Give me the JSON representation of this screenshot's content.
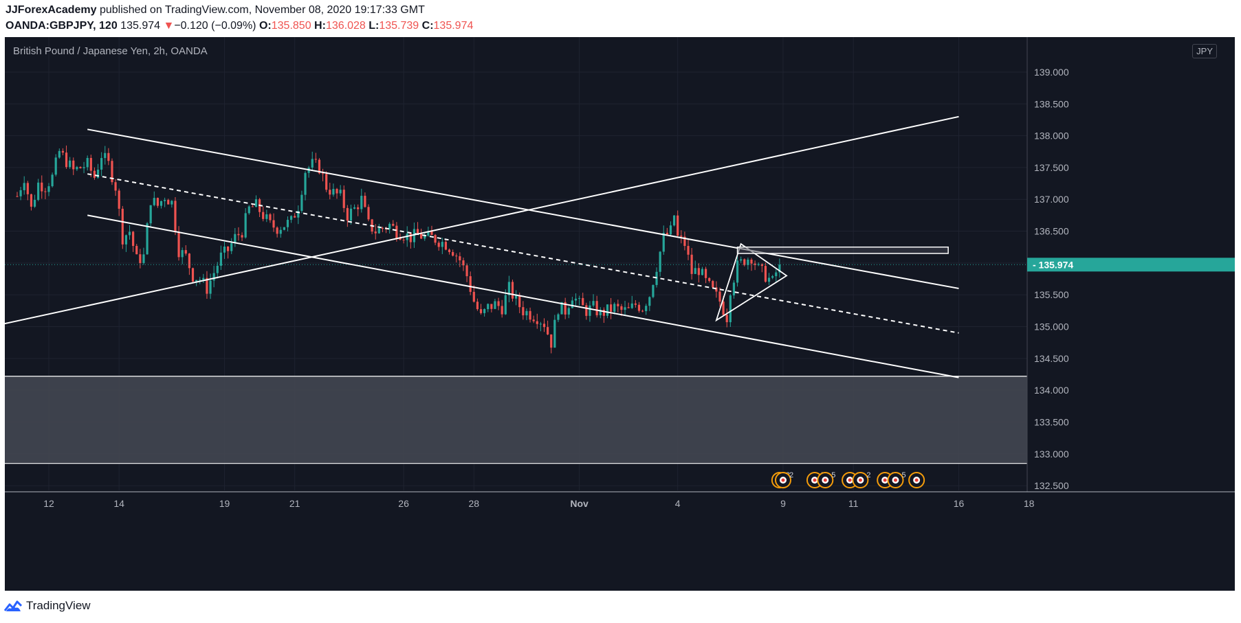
{
  "header": {
    "author": "JJForexAcademy",
    "published_text": "published on TradingView.com, November 08, 2020 19:17:33 GMT",
    "symbol": "OANDA:GBPJPY, 120",
    "last": "135.974",
    "arrow": "▼",
    "change": "−0.120 (−0.09%)",
    "o_label": "O:",
    "o_value": "135.850",
    "h_label": "H:",
    "h_value": "136.028",
    "l_label": "L:",
    "l_value": "135.739",
    "c_label": "C:",
    "c_value": "135.974"
  },
  "legend": {
    "title": "British Pound / Japanese Yen, 2h, OANDA"
  },
  "currency_button": "JPY",
  "footer": {
    "brand": "TradingView"
  },
  "colors": {
    "background": "#131722",
    "up": "#26a69a",
    "down": "#ef5350",
    "price_line": "#26a69a",
    "drawing": "#ffffff",
    "zone": "#434651"
  },
  "chart_data": {
    "type": "candlestick",
    "title": "British Pound / Japanese Yen, 2h, OANDA",
    "ylim": [
      132.35,
      139.55
    ],
    "grid": true,
    "y_ticks": [
      "132.500",
      "133.000",
      "133.500",
      "134.000",
      "134.500",
      "135.000",
      "135.500",
      "136.000",
      "136.500",
      "137.000",
      "137.500",
      "138.000",
      "138.500",
      "139.000"
    ],
    "x_ticks": [
      {
        "label": "12",
        "t": 9
      },
      {
        "label": "14",
        "t": 29
      },
      {
        "label": "19",
        "t": 59
      },
      {
        "label": "21",
        "t": 79
      },
      {
        "label": "26",
        "t": 110
      },
      {
        "label": "28",
        "t": 130
      },
      {
        "label": "Nov",
        "t": 160
      },
      {
        "label": "4",
        "t": 188
      },
      {
        "label": "9",
        "t": 218
      },
      {
        "label": "11",
        "t": 238
      },
      {
        "label": "16",
        "t": 268
      },
      {
        "label": "18",
        "t": 288
      }
    ],
    "last_price": "135.974",
    "close_path": [
      [
        0,
        137.05
      ],
      [
        2,
        137.35
      ],
      [
        4,
        136.85
      ],
      [
        6,
        137.25
      ],
      [
        8,
        137.2
      ],
      [
        10,
        137.35
      ],
      [
        12,
        137.75
      ],
      [
        14,
        137.6
      ],
      [
        16,
        137.45
      ],
      [
        18,
        137.5
      ],
      [
        20,
        137.55
      ],
      [
        22,
        137.35
      ],
      [
        24,
        137.7
      ],
      [
        26,
        137.55
      ],
      [
        28,
        137.2
      ],
      [
        30,
        136.4
      ],
      [
        32,
        136.5
      ],
      [
        34,
        136.05
      ],
      [
        36,
        136.1
      ],
      [
        38,
        137.0
      ],
      [
        40,
        136.9
      ],
      [
        42,
        137.05
      ],
      [
        44,
        136.95
      ],
      [
        46,
        136.2
      ],
      [
        48,
        136.1
      ],
      [
        50,
        135.8
      ],
      [
        52,
        135.75
      ],
      [
        54,
        135.6
      ],
      [
        56,
        135.85
      ],
      [
        58,
        136.1
      ],
      [
        60,
        136.2
      ],
      [
        62,
        136.4
      ],
      [
        64,
        136.5
      ],
      [
        66,
        136.85
      ],
      [
        68,
        136.9
      ],
      [
        70,
        136.75
      ],
      [
        72,
        136.6
      ],
      [
        74,
        136.55
      ],
      [
        76,
        136.6
      ],
      [
        78,
        136.65
      ],
      [
        80,
        136.9
      ],
      [
        82,
        137.45
      ],
      [
        84,
        137.55
      ],
      [
        86,
        137.5
      ],
      [
        88,
        137.2
      ],
      [
        90,
        137.1
      ],
      [
        92,
        137.05
      ],
      [
        94,
        136.75
      ],
      [
        96,
        136.85
      ],
      [
        98,
        137.0
      ],
      [
        100,
        136.6
      ],
      [
        102,
        136.5
      ],
      [
        104,
        136.55
      ],
      [
        106,
        136.6
      ],
      [
        108,
        136.5
      ],
      [
        110,
        136.45
      ],
      [
        112,
        136.4
      ],
      [
        114,
        136.45
      ],
      [
        116,
        136.4
      ],
      [
        118,
        136.4
      ],
      [
        120,
        136.35
      ],
      [
        122,
        136.3
      ],
      [
        124,
        136.2
      ],
      [
        126,
        136.05
      ],
      [
        128,
        135.8
      ],
      [
        130,
        135.4
      ],
      [
        132,
        135.15
      ],
      [
        134,
        135.3
      ],
      [
        136,
        135.35
      ],
      [
        138,
        135.3
      ],
      [
        140,
        135.6
      ],
      [
        142,
        135.4
      ],
      [
        144,
        135.25
      ],
      [
        146,
        135.2
      ],
      [
        148,
        135.15
      ],
      [
        150,
        135.05
      ],
      [
        152,
        134.75
      ],
      [
        154,
        135.3
      ],
      [
        156,
        135.25
      ],
      [
        158,
        135.5
      ],
      [
        160,
        135.35
      ],
      [
        162,
        135.25
      ],
      [
        164,
        135.3
      ],
      [
        166,
        135.2
      ],
      [
        168,
        135.25
      ],
      [
        170,
        135.3
      ],
      [
        172,
        135.25
      ],
      [
        174,
        135.25
      ],
      [
        176,
        135.35
      ],
      [
        178,
        135.3
      ],
      [
        180,
        135.5
      ],
      [
        182,
        135.95
      ],
      [
        184,
        136.4
      ],
      [
        186,
        136.5
      ],
      [
        187,
        136.75
      ],
      [
        188,
        136.4
      ],
      [
        190,
        136.3
      ],
      [
        192,
        135.85
      ],
      [
        194,
        135.9
      ],
      [
        196,
        135.7
      ],
      [
        198,
        135.55
      ],
      [
        200,
        135.4
      ],
      [
        202,
        135.15
      ],
      [
        203,
        135.6
      ],
      [
        205,
        135.95
      ],
      [
        207,
        136.05
      ],
      [
        209,
        136.1
      ],
      [
        211,
        135.9
      ],
      [
        213,
        135.8
      ],
      [
        215,
        135.7
      ],
      [
        216,
        135.85
      ],
      [
        217,
        135.974
      ]
    ],
    "drawings": [
      {
        "type": "trendline",
        "from": [
          -20,
          134.85
        ],
        "to": [
          268,
          138.3
        ]
      },
      {
        "type": "trendline",
        "from": [
          20,
          138.1
        ],
        "to": [
          268,
          135.6
        ]
      },
      {
        "type": "trendline",
        "from": [
          20,
          136.75
        ],
        "to": [
          268,
          134.2
        ]
      },
      {
        "type": "trendline",
        "style": "dashed",
        "from": [
          20,
          137.4
        ],
        "to": [
          268,
          134.9
        ]
      },
      {
        "type": "triangle",
        "points": [
          [
            199,
            135.1
          ],
          [
            206,
            136.3
          ],
          [
            219,
            135.8
          ]
        ]
      },
      {
        "type": "rectangle",
        "from": [
          205,
          136.25
        ],
        "to": [
          265,
          136.15
        ]
      },
      {
        "type": "zone",
        "from_price": 134.22,
        "to_price": 132.85
      }
    ],
    "event_markers": [
      {
        "t": 217,
        "count": "3"
      },
      {
        "t": 218,
        "count": "2"
      },
      {
        "t": 227,
        "count": "5"
      },
      {
        "t": 230,
        "count": "5"
      },
      {
        "t": 237,
        "count": "2"
      },
      {
        "t": 240,
        "count": "2"
      },
      {
        "t": 247,
        "count": "8"
      },
      {
        "t": 250,
        "count": "5"
      },
      {
        "t": 256,
        "count": ""
      }
    ]
  }
}
